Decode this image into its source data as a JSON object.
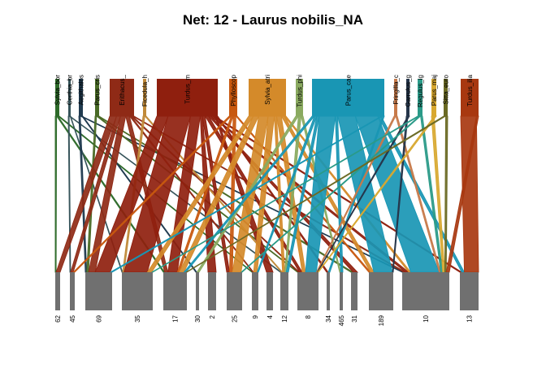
{
  "chart_data": {
    "type": "bipartite-network",
    "title": "Net: 12 - Laurus nobilis_NA",
    "higher_level": [
      {
        "label": "Sylvia_bor",
        "color": "#2e6b2a"
      },
      {
        "label": "Certhia_br",
        "color": "#36545a"
      },
      {
        "label": "Aegithalos",
        "color": "#1f3a4f"
      },
      {
        "label": "Parus_cris",
        "color": "#4a6b26"
      },
      {
        "label": "Erithacus_",
        "color": "#8f2a16"
      },
      {
        "label": "Ficedula_h",
        "color": "#c08a3a"
      },
      {
        "label": "Turdus_m",
        "color": "#8f1f0e"
      },
      {
        "label": "Phylloscop",
        "color": "#c8580f"
      },
      {
        "label": "Sylvia_atri",
        "color": "#d48a2a"
      },
      {
        "label": "Turdus_phi",
        "color": "#8aaa60"
      },
      {
        "label": "Parus_cae",
        "color": "#1996b4"
      },
      {
        "label": "Fringilla_c",
        "color": "#c77a4a"
      },
      {
        "label": "Garrulus_g",
        "color": "#25354a"
      },
      {
        "label": "Regulus_ig",
        "color": "#2a9a88"
      },
      {
        "label": "Parus_maj",
        "color": "#d8a830"
      },
      {
        "label": "Sitta_euro",
        "color": "#6b6a24"
      },
      {
        "label": "Turdus_ilia",
        "color": "#a83810"
      }
    ],
    "lower_level": [
      "62",
      "45",
      "69",
      "35",
      "17",
      "30",
      "2",
      "25",
      "9",
      "4",
      "12",
      "8",
      "34",
      "465",
      "31",
      "189",
      "10",
      "13"
    ],
    "legend": "none"
  }
}
